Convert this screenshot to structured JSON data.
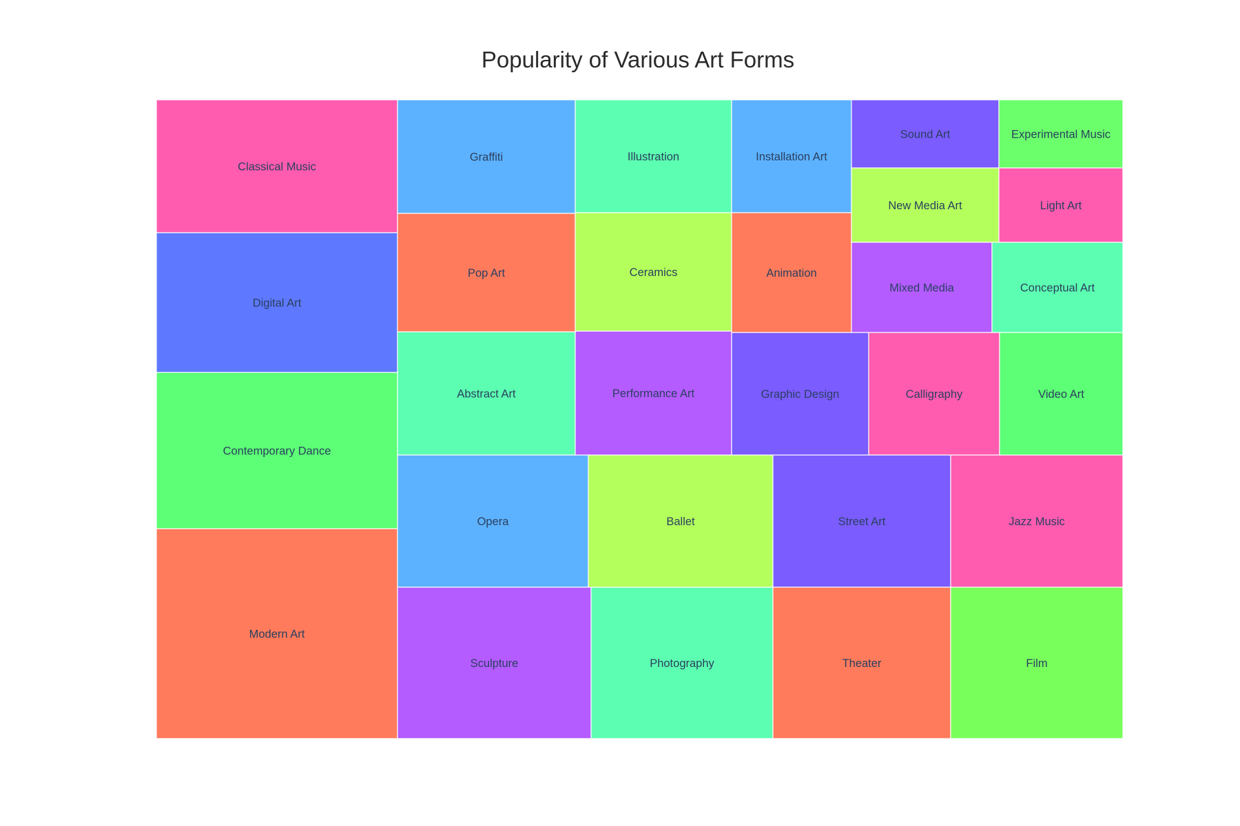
{
  "chart_data": {
    "type": "treemap",
    "title": "Popularity of Various Art Forms",
    "tiles": [
      {
        "label": "Modern Art",
        "color": "#ff7b5c"
      },
      {
        "label": "Contemporary Dance",
        "color": "#5cff75"
      },
      {
        "label": "Digital Art",
        "color": "#5e79ff"
      },
      {
        "label": "Classical Music",
        "color": "#ff5cb0"
      },
      {
        "label": "Sculpture",
        "color": "#b45cff"
      },
      {
        "label": "Photography",
        "color": "#5cffb1"
      },
      {
        "label": "Theater",
        "color": "#ff7b5c"
      },
      {
        "label": "Film",
        "color": "#79ff5c"
      },
      {
        "label": "Opera",
        "color": "#5cb2ff"
      },
      {
        "label": "Ballet",
        "color": "#b4ff5c"
      },
      {
        "label": "Street Art",
        "color": "#7b5cff"
      },
      {
        "label": "Jazz Music",
        "color": "#ff5cb0"
      },
      {
        "label": "Abstract Art",
        "color": "#5cffb1"
      },
      {
        "label": "Performance Art",
        "color": "#b45cff"
      },
      {
        "label": "Graphic Design",
        "color": "#7b5cff"
      },
      {
        "label": "Calligraphy",
        "color": "#ff5cb0"
      },
      {
        "label": "Video Art",
        "color": "#5cff75"
      },
      {
        "label": "Graffiti",
        "color": "#5cb2ff"
      },
      {
        "label": "Pop Art",
        "color": "#ff7b5c"
      },
      {
        "label": "Illustration",
        "color": "#5cffb1"
      },
      {
        "label": "Ceramics",
        "color": "#b4ff5c"
      },
      {
        "label": "Installation Art",
        "color": "#5cb2ff"
      },
      {
        "label": "Animation",
        "color": "#ff7b5c"
      },
      {
        "label": "Sound Art",
        "color": "#7b5cff"
      },
      {
        "label": "Experimental Music",
        "color": "#6bff6b"
      },
      {
        "label": "New Media Art",
        "color": "#b4ff5c"
      },
      {
        "label": "Light Art",
        "color": "#ff5cb0"
      },
      {
        "label": "Mixed Media",
        "color": "#b45cff"
      },
      {
        "label": "Conceptual Art",
        "color": "#5cffb1"
      }
    ]
  }
}
